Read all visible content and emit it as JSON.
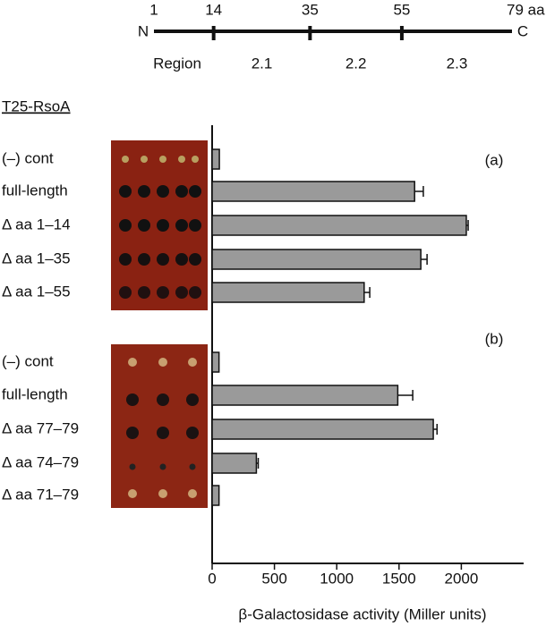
{
  "domain_map": {
    "ends": [
      "N",
      "C"
    ],
    "positions": [
      1,
      14,
      35,
      55,
      {
        "value": 79,
        "label": "79 aa"
      }
    ],
    "region_label": "Region",
    "regions": [
      "2.1",
      "2.2",
      "2.3"
    ]
  },
  "construct_label": "T25-RsoA",
  "chart_data": {
    "type": "bar",
    "orientation": "horizontal",
    "x_label": "β-Galactosidase activity (Miller units)",
    "xlim": [
      0,
      2500
    ],
    "xticks": [
      0,
      500,
      1000,
      1500,
      2000
    ],
    "color": "#9a9a9a",
    "groups": [
      {
        "label": "(a)",
        "categories": [
          "(–) cont",
          "full-length",
          "Δ aa 1–14",
          "Δ aa 1–35",
          "Δ aa 1–55"
        ],
        "values": [
          58,
          1625,
          2040,
          1675,
          1220
        ],
        "errors": [
          0,
          70,
          15,
          50,
          45
        ]
      },
      {
        "label": "(b)",
        "categories": [
          "(–) cont",
          "full-length",
          "Δ aa 77–79",
          "Δ aa 74–79",
          "Δ aa 71–79"
        ],
        "values": [
          55,
          1490,
          1775,
          355,
          55
        ],
        "errors": [
          0,
          120,
          30,
          15,
          0
        ]
      }
    ]
  }
}
